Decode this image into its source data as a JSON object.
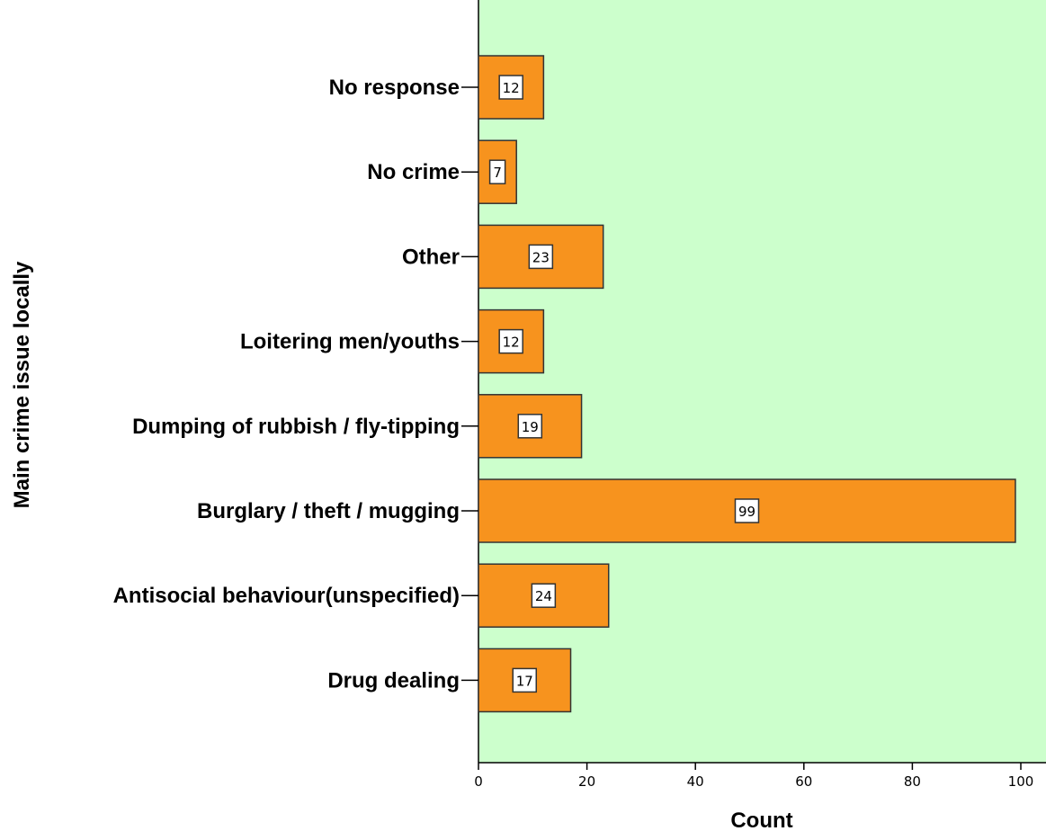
{
  "chart_data": {
    "type": "bar",
    "orientation": "horizontal",
    "title": "",
    "xlabel": "Count",
    "ylabel": "Main crime issue locally",
    "categories": [
      "No response",
      "No crime",
      "Other",
      "Loitering men/youths",
      "Dumping of rubbish / fly-tipping",
      "Burglary / theft / mugging",
      "Antisocial behaviour(unspecified)",
      "Drug dealing"
    ],
    "values": [
      12,
      7,
      23,
      12,
      19,
      99,
      24,
      17
    ],
    "xlim": [
      0,
      103
    ],
    "xticks": [
      "0",
      "20",
      "40",
      "60",
      "80",
      "100"
    ],
    "grid": false,
    "legend": "none",
    "data_labels": true,
    "colors": {
      "plot_background": "#ccffcc",
      "bar_fill": "#f7931e",
      "bar_stroke": "#333333",
      "label_box": "#ffffff"
    }
  }
}
